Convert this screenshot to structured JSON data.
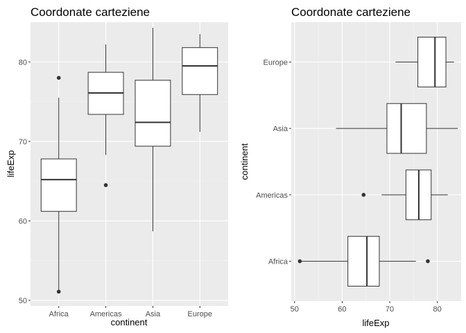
{
  "chart_data": [
    {
      "type": "boxplot",
      "orientation": "vertical",
      "title": "Coordonate carteziene",
      "xlabel": "continent",
      "ylabel": "lifeExp",
      "categories": [
        "Africa",
        "Americas",
        "Asia",
        "Europe"
      ],
      "value_ticks": [
        50,
        60,
        70,
        80
      ],
      "ylim": [
        49.3,
        85.0
      ],
      "grid": true,
      "boxes": [
        {
          "category": "Africa",
          "min": 51.2,
          "q1": 61.2,
          "median": 65.2,
          "q3": 67.8,
          "max": 75.5,
          "outliers": [
            78.0,
            51.1
          ]
        },
        {
          "category": "Americas",
          "min": 68.3,
          "q1": 73.4,
          "median": 76.1,
          "q3": 78.7,
          "max": 82.2,
          "outliers": [
            64.5
          ]
        },
        {
          "category": "Asia",
          "min": 58.7,
          "q1": 69.4,
          "median": 72.4,
          "q3": 77.7,
          "max": 84.3,
          "outliers": []
        },
        {
          "category": "Europe",
          "min": 71.2,
          "q1": 75.9,
          "median": 79.5,
          "q3": 81.8,
          "max": 83.5,
          "outliers": []
        }
      ]
    },
    {
      "type": "boxplot",
      "orientation": "horizontal",
      "title": "Coordonate carteziene",
      "xlabel": "lifeExp",
      "ylabel": "continent",
      "categories": [
        "Africa",
        "Americas",
        "Asia",
        "Europe"
      ],
      "value_ticks": [
        50,
        60,
        70,
        80
      ],
      "xlim": [
        49.3,
        85.0
      ],
      "grid": true,
      "boxes": [
        {
          "category": "Africa",
          "min": 51.2,
          "q1": 61.2,
          "median": 65.2,
          "q3": 67.8,
          "max": 75.5,
          "outliers": [
            78.0,
            51.1
          ]
        },
        {
          "category": "Americas",
          "min": 68.3,
          "q1": 73.4,
          "median": 76.1,
          "q3": 78.7,
          "max": 82.2,
          "outliers": [
            64.5
          ]
        },
        {
          "category": "Asia",
          "min": 58.7,
          "q1": 69.4,
          "median": 72.4,
          "q3": 77.7,
          "max": 84.3,
          "outliers": []
        },
        {
          "category": "Europe",
          "min": 71.2,
          "q1": 75.9,
          "median": 79.5,
          "q3": 81.8,
          "max": 83.5,
          "outliers": []
        }
      ]
    }
  ],
  "colors": {
    "panel_background": "#ebebeb",
    "grid_major": "#ffffff",
    "grid_minor": "#f5f5f5",
    "box_fill": "#ffffff",
    "line": "#333333",
    "tick_text": "#4d4d4d",
    "title_text": "#000000"
  }
}
